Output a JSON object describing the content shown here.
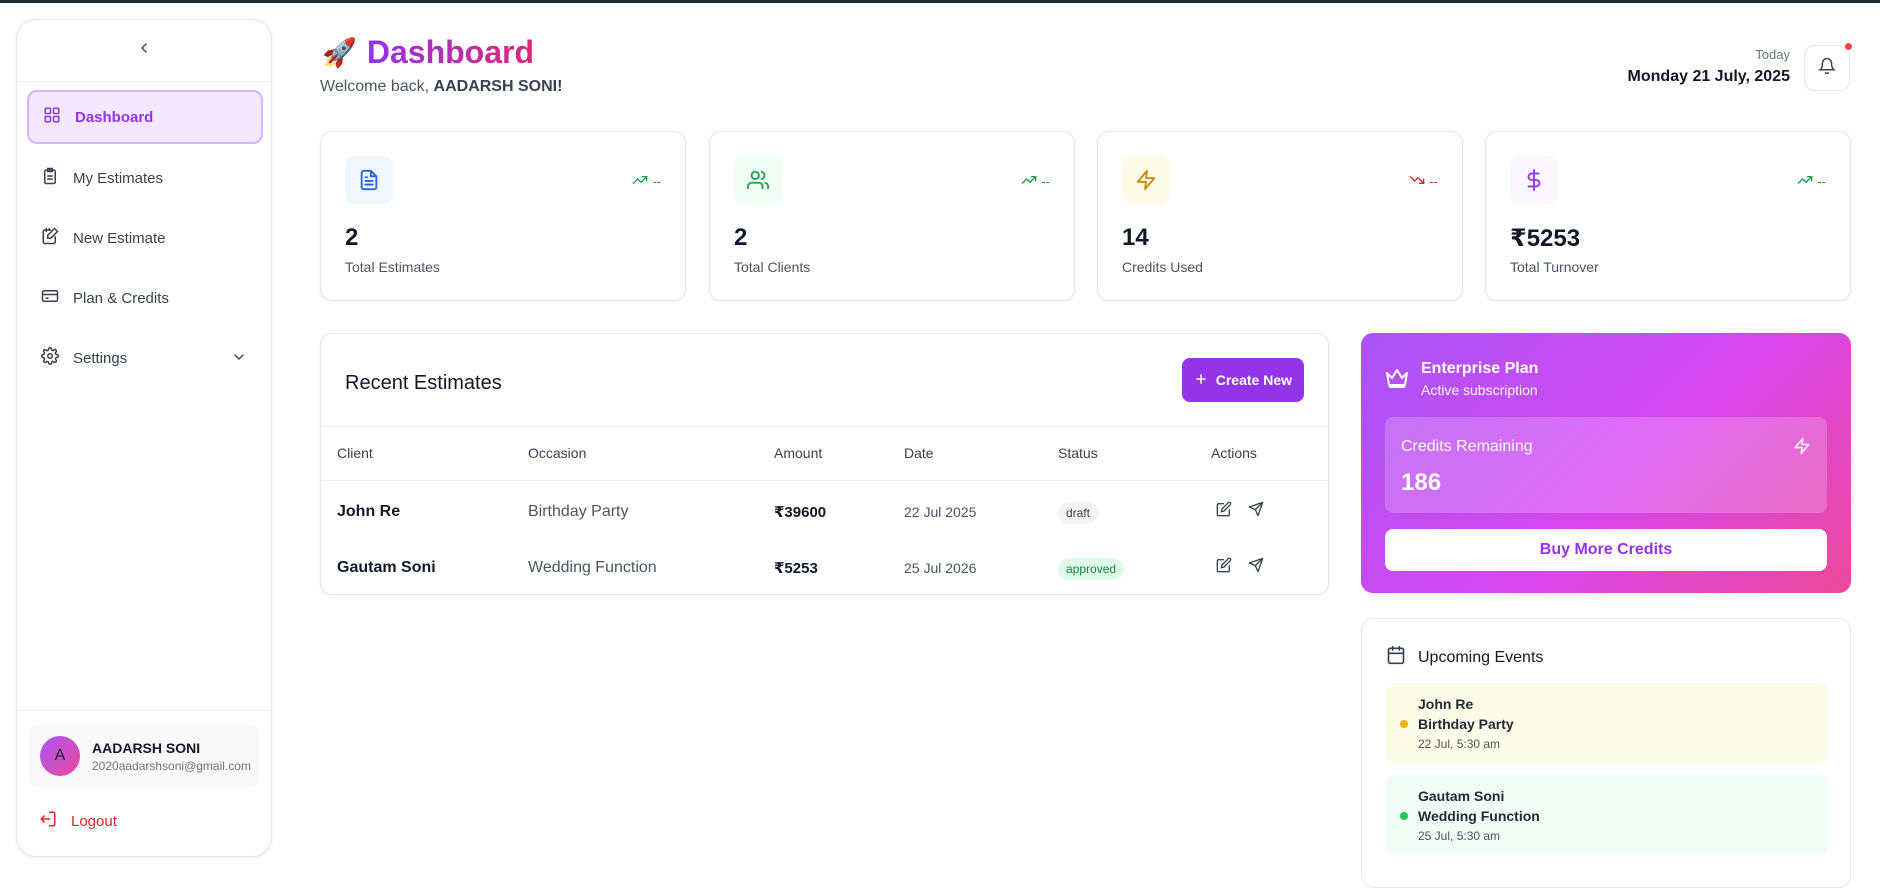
{
  "sidebar": {
    "items": [
      {
        "label": "Dashboard"
      },
      {
        "label": "My Estimates"
      },
      {
        "label": "New Estimate"
      },
      {
        "label": "Plan & Credits"
      },
      {
        "label": "Settings"
      }
    ],
    "user": {
      "initial": "A",
      "name": "AADARSH SONI",
      "email": "2020aadarshsoni@gmail.com"
    },
    "logout_label": "Logout"
  },
  "header": {
    "title_emoji": "🚀",
    "title": "Dashboard",
    "welcome_prefix": "Welcome back,",
    "welcome_name": "AADARSH SONI!",
    "today_label": "Today",
    "today_date": "Monday 21 July, 2025"
  },
  "stats": [
    {
      "value": "2",
      "label": "Total Estimates",
      "trend": "--",
      "trend_dir": "up",
      "icon": "document-icon",
      "color": "#2563eb"
    },
    {
      "value": "2",
      "label": "Total Clients",
      "trend": "--",
      "trend_dir": "up",
      "icon": "users-icon",
      "color": "#16a34a"
    },
    {
      "value": "14",
      "label": "Credits Used",
      "trend": "--",
      "trend_dir": "down",
      "icon": "lightning-icon",
      "color": "#ca8a04"
    },
    {
      "value": "₹5253",
      "label": "Total Turnover",
      "trend": "--",
      "trend_dir": "up",
      "icon": "dollar-icon",
      "color": "#9333ea"
    }
  ],
  "recent": {
    "title": "Recent Estimates",
    "create_label": "Create New",
    "columns": [
      "Client",
      "Occasion",
      "Amount",
      "Date",
      "Status",
      "Actions"
    ],
    "rows": [
      {
        "client": "John Re",
        "occasion": "Birthday Party",
        "amount": "₹39600",
        "date": "22 Jul 2025",
        "status": "draft"
      },
      {
        "client": "Gautam Soni",
        "occasion": "Wedding Function",
        "amount": "₹5253",
        "date": "25 Jul 2026",
        "status": "approved"
      }
    ]
  },
  "plan": {
    "name": "Enterprise Plan",
    "subtitle": "Active subscription",
    "credits_label": "Credits Remaining",
    "credits_value": "186",
    "buy_label": "Buy More Credits"
  },
  "events": {
    "title": "Upcoming Events",
    "items": [
      {
        "name": "John Re",
        "occasion": "Birthday Party",
        "time": "22 Jul, 5:30 am",
        "dot": "#eab308",
        "bg": "#fefce8"
      },
      {
        "name": "Gautam Soni",
        "occasion": "Wedding Function",
        "time": "25 Jul, 5:30 am",
        "dot": "#22c55e",
        "bg": "#f0fdf4"
      }
    ]
  }
}
